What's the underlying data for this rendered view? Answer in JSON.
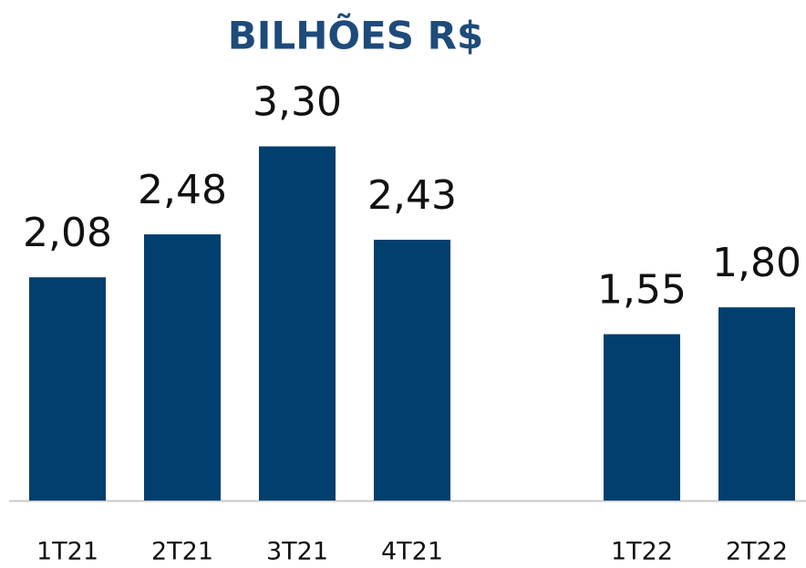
{
  "chart_data": {
    "type": "bar",
    "title": "BILHÕES R$",
    "categories": [
      "1T21",
      "2T21",
      "3T21",
      "4T21",
      null,
      "1T22",
      "2T22"
    ],
    "values": [
      2.08,
      2.48,
      3.3,
      2.43,
      null,
      1.55,
      1.8
    ],
    "value_labels": [
      "2,08",
      "2,48",
      "3,30",
      "2,43",
      null,
      "1,55",
      "1,80"
    ],
    "color": "#003f6e",
    "ylim": [
      0,
      3.5
    ]
  }
}
